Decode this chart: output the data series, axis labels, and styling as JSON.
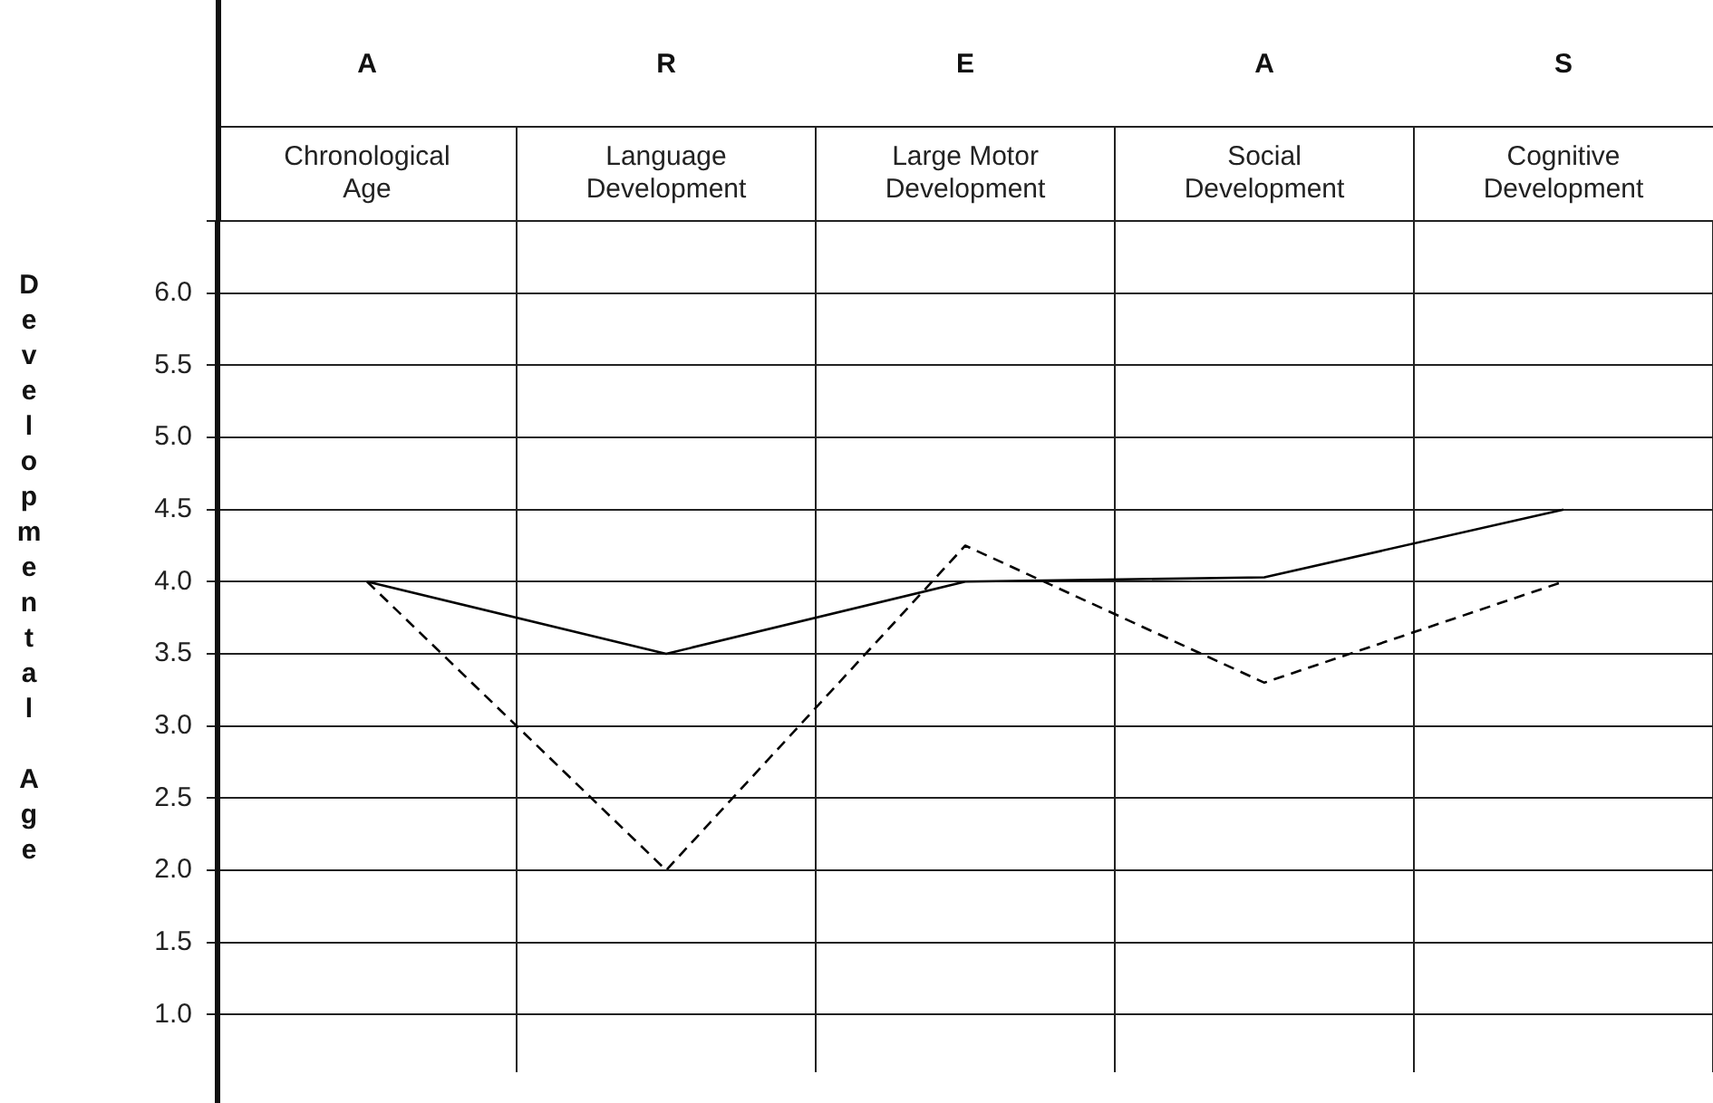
{
  "chart_data": {
    "type": "line",
    "ylabel": "Developmental Age",
    "categories": [
      "Chronological Age",
      "Language Development",
      "Large Motor Development",
      "Social Development",
      "Cognitive Development"
    ],
    "annotations": [
      "A",
      "R",
      "E",
      "A",
      "S"
    ],
    "series": [
      {
        "color": "#000000",
        "values": [
          4.0,
          3.5,
          4.0,
          4.03,
          4.5
        ],
        "line_style": "solid"
      },
      {
        "color": "#000000",
        "values": [
          4.0,
          2.0,
          4.25,
          3.3,
          4.0
        ],
        "line_style": "dashed"
      }
    ],
    "ylim": [
      0.6,
      6.5
    ],
    "yticks": [
      {
        "value": 1,
        "label": "1.0"
      },
      1.5,
      {
        "value": 2,
        "label": "2.0"
      },
      2.5,
      {
        "value": 3,
        "label": "3.0"
      },
      3.5,
      {
        "value": 4,
        "label": "4.0"
      },
      4.5,
      {
        "value": 5,
        "label": "5.0"
      },
      5.5,
      {
        "value": 6,
        "label": "6.0"
      },
      {
        "value": 6.5,
        "label": null
      }
    ],
    "grid": true,
    "legend": false,
    "marker": "none"
  }
}
